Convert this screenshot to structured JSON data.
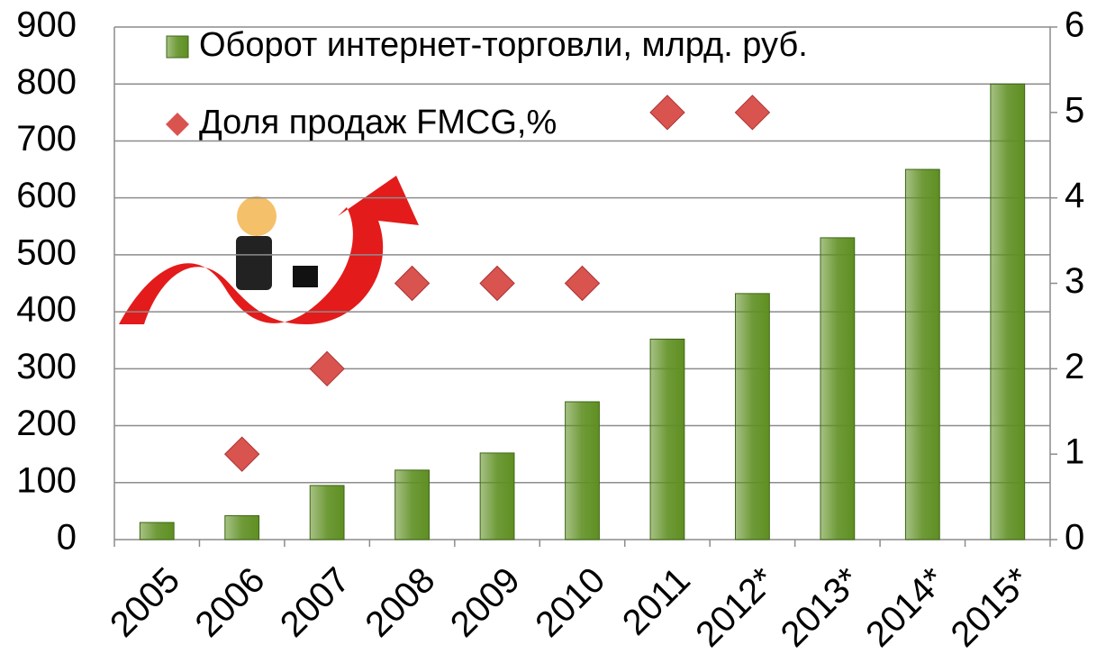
{
  "chart_data": {
    "type": "bar",
    "categories": [
      "2005",
      "2006",
      "2007",
      "2008",
      "2009",
      "2010",
      "2011",
      "2012*",
      "2013*",
      "2014*",
      "2015*"
    ],
    "series": [
      {
        "name": "Оборот интернет-торговли, млрд. руб.",
        "type": "bar",
        "color": "#5f8f22",
        "values": [
          30,
          42,
          95,
          122,
          152,
          242,
          352,
          432,
          530,
          650,
          800
        ]
      },
      {
        "name": "Доля продаж FMCG,%",
        "type": "scatter",
        "color": "#d9534f",
        "axis": "y2",
        "values": [
          null,
          1,
          2,
          3,
          3,
          3,
          5,
          5,
          null,
          null,
          null
        ]
      }
    ],
    "ylim": [
      0,
      900
    ],
    "yticks": [
      0,
      100,
      200,
      300,
      400,
      500,
      600,
      700,
      800,
      900
    ],
    "y2lim": [
      0,
      6
    ],
    "y2ticks": [
      0,
      1,
      2,
      3,
      4,
      5,
      6
    ],
    "grid": true,
    "legend": "top-left"
  }
}
